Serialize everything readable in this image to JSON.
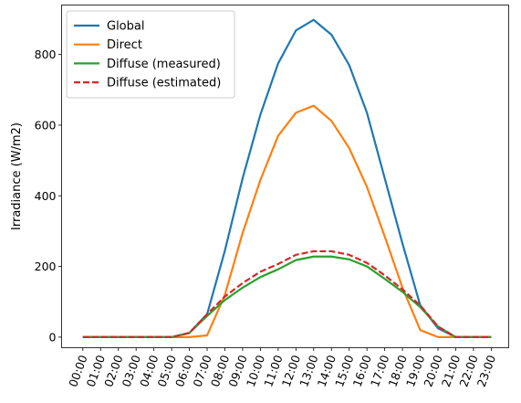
{
  "chart_data": {
    "type": "line",
    "title": "",
    "xlabel": "",
    "ylabel": "Irradiance (W/m2)",
    "x": [
      "00:00",
      "01:00",
      "02:00",
      "03:00",
      "04:00",
      "05:00",
      "06:00",
      "07:00",
      "08:00",
      "09:00",
      "10:00",
      "11:00",
      "12:00",
      "13:00",
      "14:00",
      "15:00",
      "16:00",
      "17:00",
      "18:00",
      "19:00",
      "20:00",
      "21:00",
      "22:00",
      "23:00"
    ],
    "ylim": [
      -30,
      940
    ],
    "yticks": [
      0,
      200,
      400,
      600,
      800
    ],
    "grid": false,
    "legend_position": "top-left",
    "series": [
      {
        "name": "Global",
        "color": "#1f77b4",
        "dash": "solid",
        "values": [
          0,
          0,
          0,
          0,
          0,
          0,
          12,
          65,
          245,
          450,
          630,
          775,
          868,
          898,
          856,
          770,
          635,
          450,
          265,
          90,
          25,
          0,
          0,
          0
        ]
      },
      {
        "name": "Direct",
        "color": "#ff7f0e",
        "dash": "solid",
        "values": [
          0,
          0,
          0,
          0,
          0,
          0,
          0,
          5,
          120,
          295,
          445,
          570,
          635,
          655,
          612,
          535,
          425,
          285,
          140,
          20,
          0,
          0,
          0,
          0
        ]
      },
      {
        "name": "Diffuse (measured)",
        "color": "#2ca02c",
        "dash": "solid",
        "values": [
          0,
          0,
          0,
          0,
          0,
          0,
          12,
          60,
          105,
          140,
          170,
          192,
          218,
          228,
          228,
          220,
          200,
          165,
          128,
          85,
          30,
          0,
          0,
          0
        ]
      },
      {
        "name": "Diffuse (estimated)",
        "color": "#d62728",
        "dash": "dashed",
        "values": [
          0,
          0,
          0,
          0,
          0,
          0,
          12,
          65,
          115,
          153,
          185,
          207,
          233,
          243,
          243,
          233,
          210,
          175,
          135,
          90,
          30,
          0,
          0,
          0
        ]
      }
    ]
  }
}
